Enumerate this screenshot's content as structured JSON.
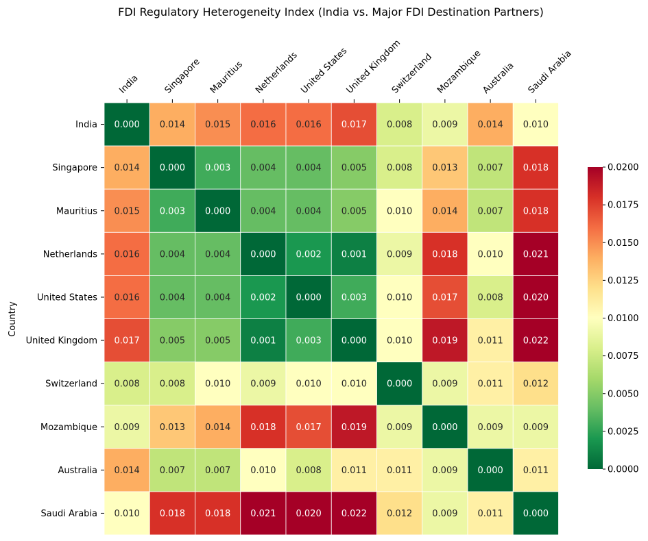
{
  "chart_data": {
    "type": "heatmap",
    "title": "FDI Regulatory Heterogeneity Index (India vs. Major FDI Destination Partners)",
    "xlabel": "",
    "ylabel": "Country",
    "x_categories": [
      "India",
      "Singapore",
      "Mauritius",
      "Netherlands",
      "United States",
      "United Kingdom",
      "Switzerland",
      "Mozambique",
      "Australia",
      "Saudi Arabia"
    ],
    "y_categories": [
      "India",
      "Singapore",
      "Mauritius",
      "Netherlands",
      "United States",
      "United Kingdom",
      "Switzerland",
      "Mozambique",
      "Australia",
      "Saudi Arabia"
    ],
    "values": [
      [
        0.0,
        0.014,
        0.015,
        0.016,
        0.016,
        0.017,
        0.008,
        0.009,
        0.014,
        0.01
      ],
      [
        0.014,
        0.0,
        0.003,
        0.004,
        0.004,
        0.005,
        0.008,
        0.013,
        0.007,
        0.018
      ],
      [
        0.015,
        0.003,
        0.0,
        0.004,
        0.004,
        0.005,
        0.01,
        0.014,
        0.007,
        0.018
      ],
      [
        0.016,
        0.004,
        0.004,
        0.0,
        0.002,
        0.001,
        0.009,
        0.018,
        0.01,
        0.021
      ],
      [
        0.016,
        0.004,
        0.004,
        0.002,
        0.0,
        0.003,
        0.01,
        0.017,
        0.008,
        0.02
      ],
      [
        0.017,
        0.005,
        0.005,
        0.001,
        0.003,
        0.0,
        0.01,
        0.019,
        0.011,
        0.022
      ],
      [
        0.008,
        0.008,
        0.01,
        0.009,
        0.01,
        0.01,
        0.0,
        0.009,
        0.011,
        0.012
      ],
      [
        0.009,
        0.013,
        0.014,
        0.018,
        0.017,
        0.019,
        0.009,
        0.0,
        0.009,
        0.009
      ],
      [
        0.014,
        0.007,
        0.007,
        0.01,
        0.008,
        0.011,
        0.011,
        0.009,
        0.0,
        0.011
      ],
      [
        0.01,
        0.018,
        0.018,
        0.021,
        0.02,
        0.022,
        0.012,
        0.009,
        0.011,
        0.0
      ]
    ],
    "value_format": "0.000",
    "colormap": "RdYlGn_r",
    "color_range": [
      0.0,
      0.02
    ],
    "colorbar_ticks": [
      "0.0000",
      "0.0025",
      "0.0050",
      "0.0075",
      "0.0100",
      "0.0125",
      "0.0150",
      "0.0175",
      "0.0200"
    ],
    "x_tick_position": "top",
    "x_tick_rotation_deg": 45,
    "grid": false,
    "colorbar_placement": "right"
  }
}
